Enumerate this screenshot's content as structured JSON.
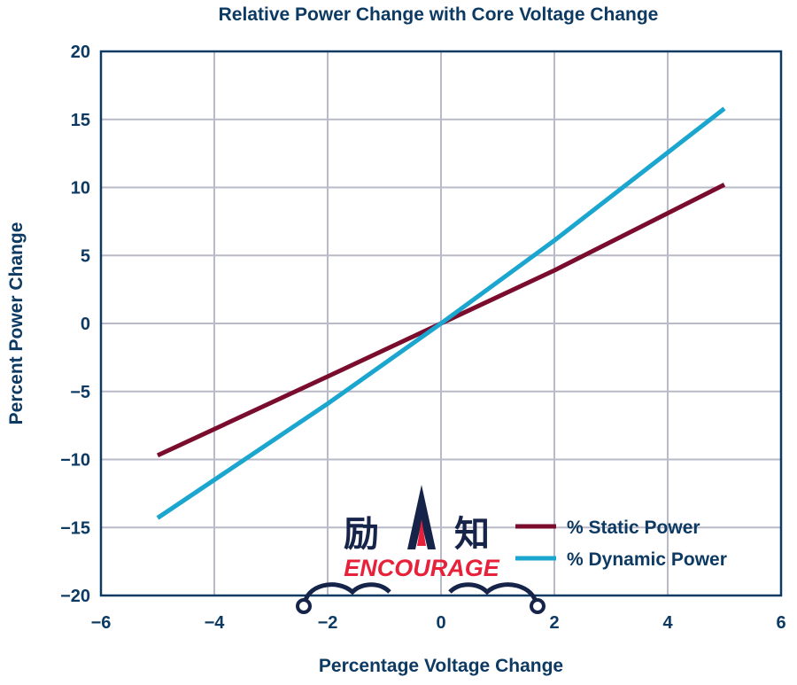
{
  "chart_data": {
    "type": "line",
    "title": "Relative Power Change with Core Voltage Change",
    "xlabel": "Percentage Voltage Change",
    "ylabel": "Percent Power Change",
    "xlim": [
      -6,
      6
    ],
    "ylim": [
      -20,
      20
    ],
    "xticks": [
      -6,
      -4,
      -2,
      0,
      2,
      4,
      6
    ],
    "yticks": [
      20,
      15,
      10,
      5,
      0,
      -5,
      -10,
      -15,
      -20
    ],
    "xtick_labels": [
      "−6",
      "−4",
      "−2",
      "0",
      "2",
      "4",
      "6"
    ],
    "ytick_labels": [
      "20",
      "15",
      "10",
      "5",
      "0",
      "−5",
      "−10",
      "−15",
      "−20"
    ],
    "grid": true,
    "legend_position": "bottom-right",
    "series": [
      {
        "name": "% Static Power",
        "color": "#7a0c2e",
        "x": [
          -5,
          -2,
          0,
          2,
          5
        ],
        "y": [
          -9.7,
          -3.9,
          0,
          3.9,
          10.2
        ]
      },
      {
        "name": "% Dynamic Power",
        "color": "#1aa6cf",
        "x": [
          -5,
          -2,
          0,
          2,
          5
        ],
        "y": [
          -14.3,
          -5.9,
          0,
          6.1,
          15.8
        ]
      }
    ]
  },
  "watermark": {
    "cn_left": "励",
    "cn_right": "知",
    "en": "ENCOURAGE"
  },
  "colors": {
    "text": "#0d3a63",
    "grid": "#b9bac8",
    "frame": "#0d3a63"
  }
}
